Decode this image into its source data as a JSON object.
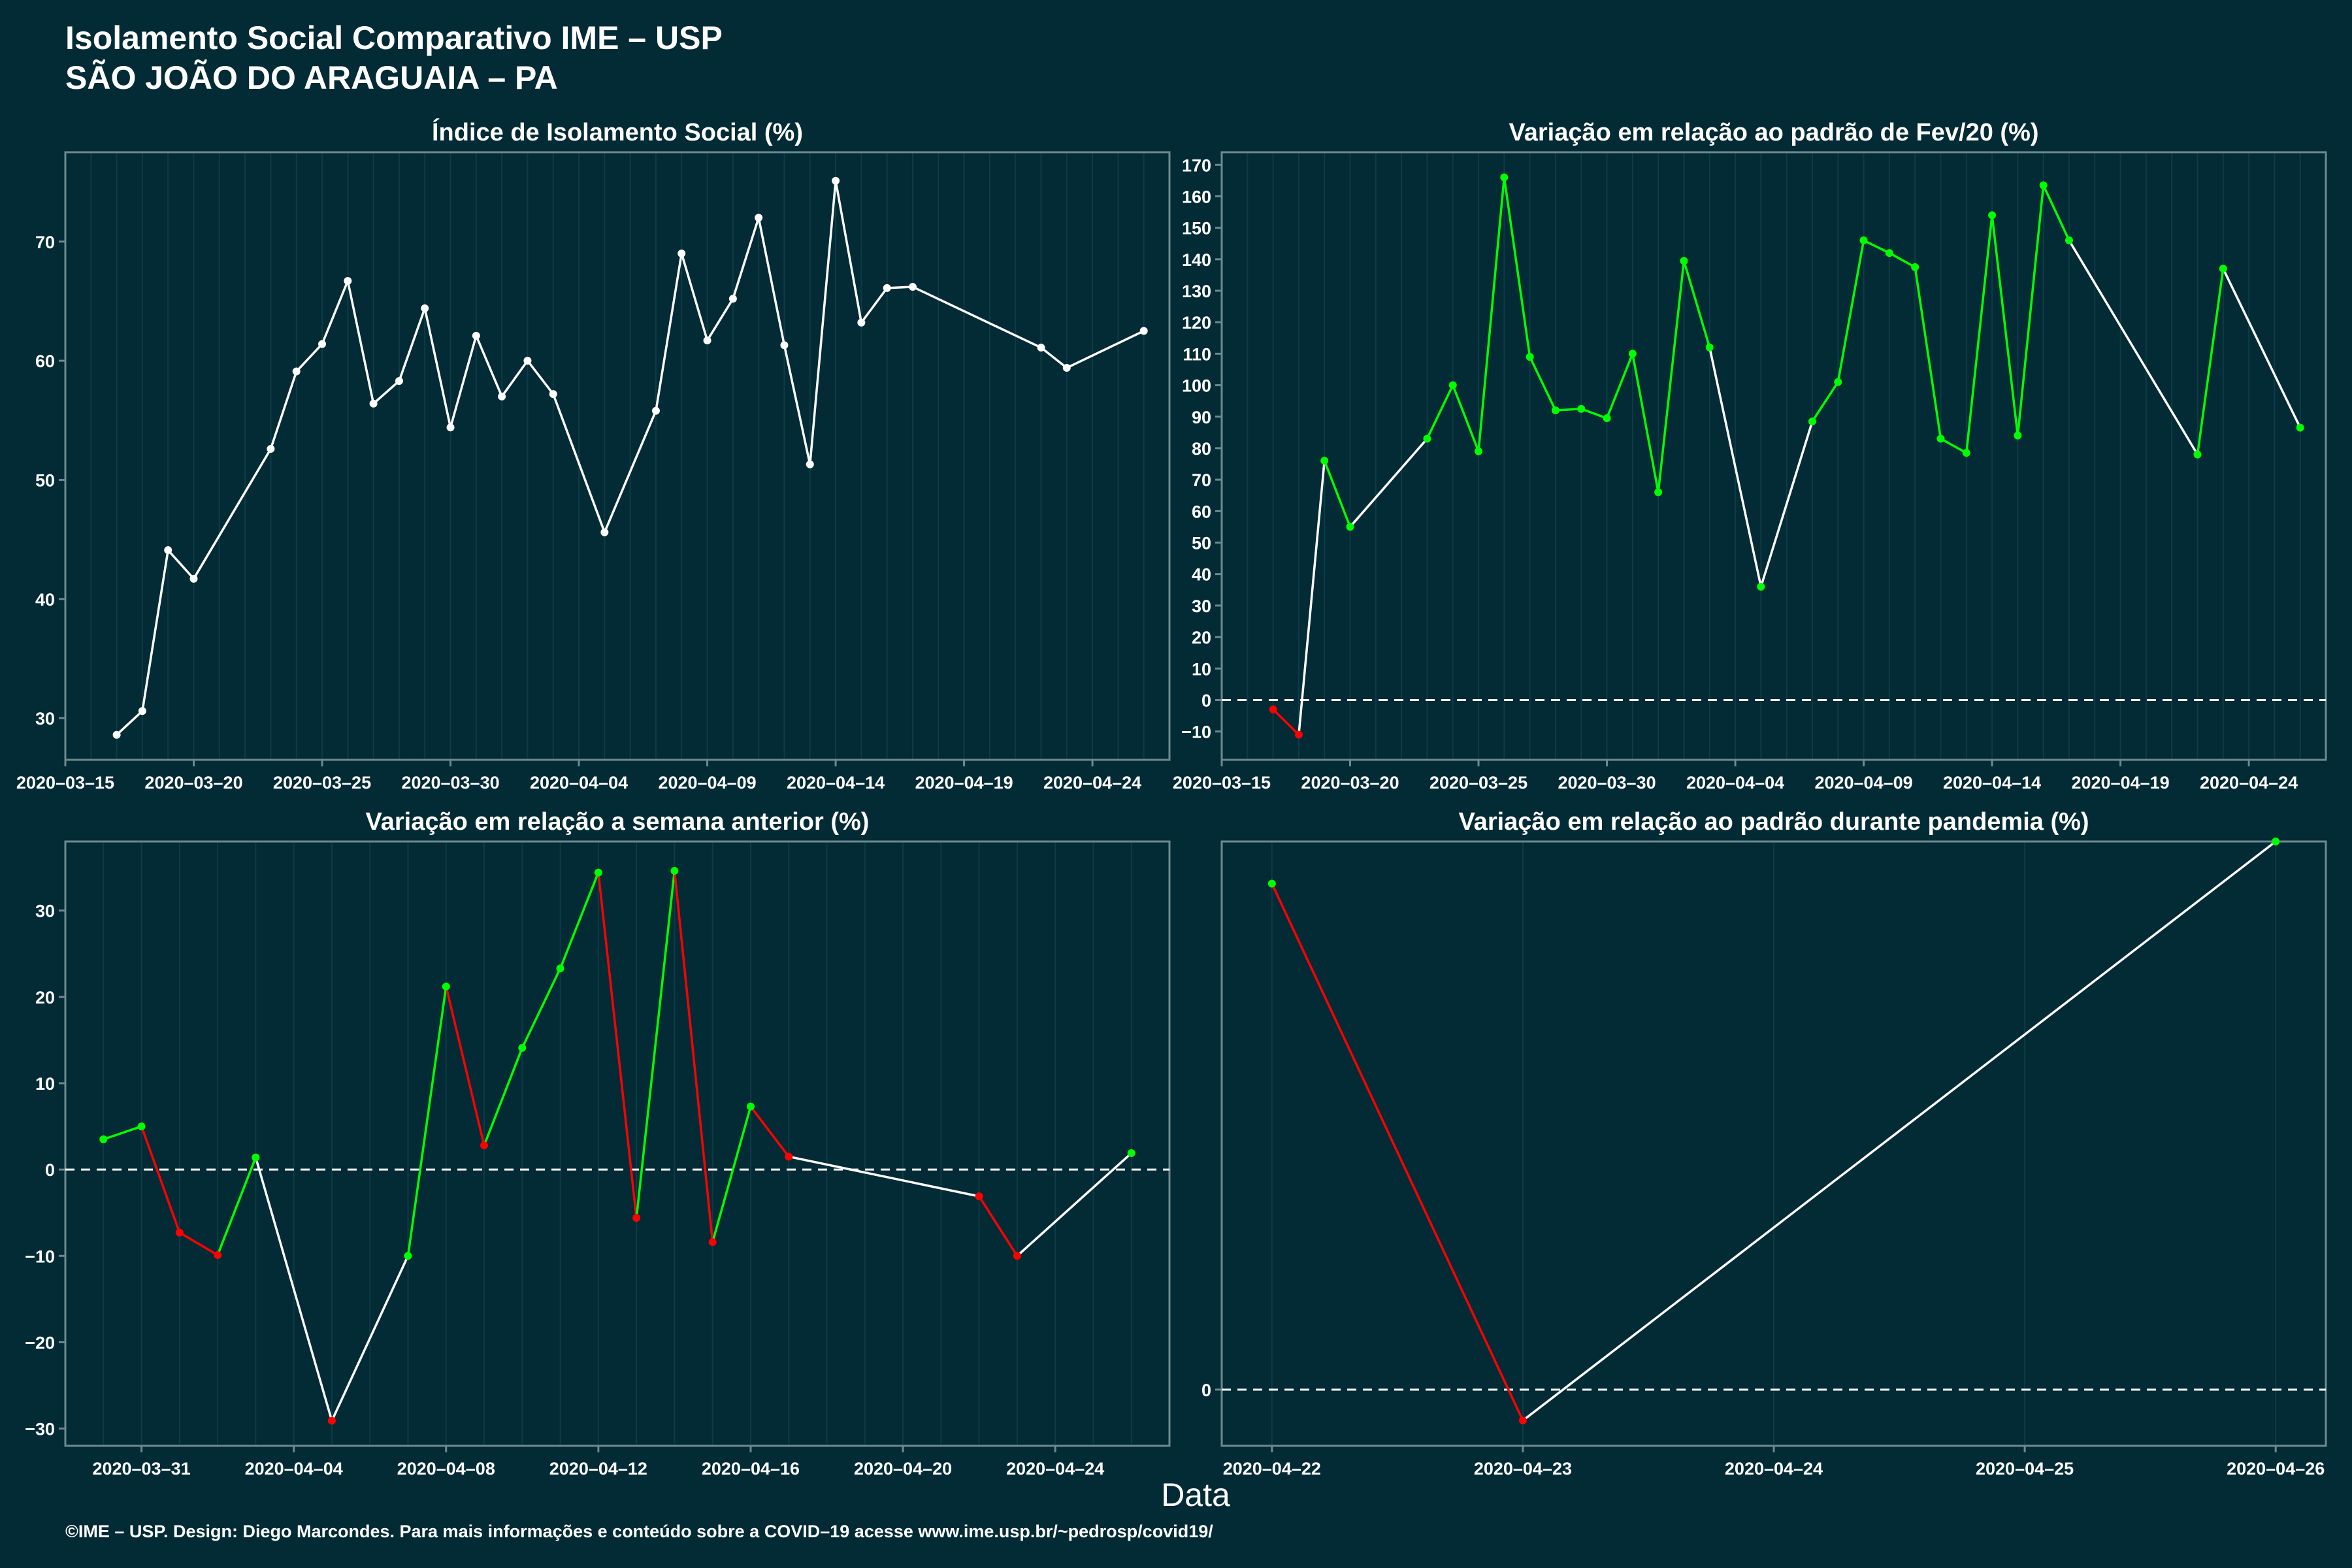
{
  "header": {
    "title": "Isolamento Social Comparativo IME – USP",
    "subtitle": "SÃO JOÃO DO ARAGUAIA – PA"
  },
  "x_axis_label": "Data",
  "footer": "©IME – USP. Design: Diego Marcondes. Para mais informações e conteúdo sobre a COVID–19 acesse www.ime.usp.br/~pedrosp/covid19/",
  "colors": {
    "background": "#022b35",
    "text": "#ffffff",
    "axis": "#6e8a8f",
    "grid": "#0e3b45",
    "neutral_line": "#ffffff",
    "increase": "#00ff00",
    "decrease": "#ff0000"
  },
  "chart_data": [
    {
      "type": "line",
      "title": "Índice de Isolamento Social (%)",
      "x_type": "date",
      "xlim": [
        "2020-03-15",
        "2020-04-27"
      ],
      "ylim": [
        26.5,
        77.5
      ],
      "x_ticks": [
        "2020-03-15",
        "2020-03-20",
        "2020-03-25",
        "2020-03-30",
        "2020-04-04",
        "2020-04-09",
        "2020-04-14",
        "2020-04-19",
        "2020-04-24"
      ],
      "y_ticks": [
        30,
        40,
        50,
        60,
        70
      ],
      "zero_line": false,
      "coloring": "none",
      "grid": true,
      "points": [
        {
          "x": "2020-03-17",
          "y": 28.6
        },
        {
          "x": "2020-03-18",
          "y": 30.6
        },
        {
          "x": "2020-03-19",
          "y": 44.1
        },
        {
          "x": "2020-03-20",
          "y": 41.7
        },
        {
          "x": "2020-03-23",
          "y": 52.6
        },
        {
          "x": "2020-03-24",
          "y": 59.1
        },
        {
          "x": "2020-03-25",
          "y": 61.4
        },
        {
          "x": "2020-03-26",
          "y": 66.7
        },
        {
          "x": "2020-03-27",
          "y": 56.4
        },
        {
          "x": "2020-03-28",
          "y": 58.3
        },
        {
          "x": "2020-03-29",
          "y": 64.4
        },
        {
          "x": "2020-03-30",
          "y": 54.4
        },
        {
          "x": "2020-03-31",
          "y": 62.1
        },
        {
          "x": "2020-04-01",
          "y": 57.0
        },
        {
          "x": "2020-04-02",
          "y": 60.0
        },
        {
          "x": "2020-04-03",
          "y": 57.2
        },
        {
          "x": "2020-04-05",
          "y": 45.6
        },
        {
          "x": "2020-04-07",
          "y": 55.8
        },
        {
          "x": "2020-04-08",
          "y": 69.0
        },
        {
          "x": "2020-04-09",
          "y": 61.7
        },
        {
          "x": "2020-04-10",
          "y": 65.2
        },
        {
          "x": "2020-04-11",
          "y": 72.0
        },
        {
          "x": "2020-04-12",
          "y": 61.3
        },
        {
          "x": "2020-04-13",
          "y": 51.3
        },
        {
          "x": "2020-04-14",
          "y": 75.1
        },
        {
          "x": "2020-04-15",
          "y": 63.2
        },
        {
          "x": "2020-04-16",
          "y": 66.1
        },
        {
          "x": "2020-04-17",
          "y": 66.2
        },
        {
          "x": "2020-04-22",
          "y": 61.1
        },
        {
          "x": "2020-04-23",
          "y": 59.4
        },
        {
          "x": "2020-04-26",
          "y": 62.5
        }
      ]
    },
    {
      "type": "line",
      "title": "Variação em relação ao padrão de Fev/20 (%)",
      "x_type": "date",
      "xlim": [
        "2020-03-15",
        "2020-04-27"
      ],
      "ylim": [
        -19,
        174
      ],
      "x_ticks": [
        "2020-03-15",
        "2020-03-20",
        "2020-03-25",
        "2020-03-30",
        "2020-04-04",
        "2020-04-09",
        "2020-04-14",
        "2020-04-19",
        "2020-04-24"
      ],
      "y_ticks": [
        -10,
        0,
        10,
        20,
        30,
        40,
        50,
        60,
        70,
        80,
        90,
        100,
        110,
        120,
        130,
        140,
        150,
        160,
        170
      ],
      "zero_line": true,
      "coloring": "sign",
      "grid": true,
      "points": [
        {
          "x": "2020-03-17",
          "y": -3
        },
        {
          "x": "2020-03-18",
          "y": -11
        },
        {
          "x": "2020-03-19",
          "y": 76
        },
        {
          "x": "2020-03-20",
          "y": 55
        },
        {
          "x": "2020-03-23",
          "y": 83
        },
        {
          "x": "2020-03-24",
          "y": 100
        },
        {
          "x": "2020-03-25",
          "y": 79
        },
        {
          "x": "2020-03-26",
          "y": 166
        },
        {
          "x": "2020-03-27",
          "y": 109
        },
        {
          "x": "2020-03-28",
          "y": 92
        },
        {
          "x": "2020-03-29",
          "y": 92.5
        },
        {
          "x": "2020-03-30",
          "y": 89.5
        },
        {
          "x": "2020-03-31",
          "y": 110
        },
        {
          "x": "2020-04-01",
          "y": 66
        },
        {
          "x": "2020-04-02",
          "y": 139.5
        },
        {
          "x": "2020-04-03",
          "y": 112
        },
        {
          "x": "2020-04-05",
          "y": 36
        },
        {
          "x": "2020-04-07",
          "y": 88.5
        },
        {
          "x": "2020-04-08",
          "y": 101
        },
        {
          "x": "2020-04-09",
          "y": 146
        },
        {
          "x": "2020-04-10",
          "y": 142
        },
        {
          "x": "2020-04-11",
          "y": 137.5
        },
        {
          "x": "2020-04-12",
          "y": 83
        },
        {
          "x": "2020-04-13",
          "y": 78.5
        },
        {
          "x": "2020-04-14",
          "y": 154
        },
        {
          "x": "2020-04-15",
          "y": 84
        },
        {
          "x": "2020-04-16",
          "y": 163.5
        },
        {
          "x": "2020-04-17",
          "y": 146
        },
        {
          "x": "2020-04-22",
          "y": 78
        },
        {
          "x": "2020-04-23",
          "y": 137
        },
        {
          "x": "2020-04-26",
          "y": 86.5
        }
      ]
    },
    {
      "type": "line",
      "title": "Variação em relação a semana anterior (%)",
      "x_type": "date",
      "xlim": [
        "2020-03-29",
        "2020-04-27"
      ],
      "ylim": [
        -32,
        38
      ],
      "x_ticks": [
        "2020-03-31",
        "2020-04-04",
        "2020-04-08",
        "2020-04-12",
        "2020-04-16",
        "2020-04-20",
        "2020-04-24"
      ],
      "y_ticks": [
        -30,
        -20,
        -10,
        0,
        10,
        20,
        30
      ],
      "zero_line": true,
      "coloring": "trend",
      "grid": true,
      "points": [
        {
          "x": "2020-03-30",
          "y": 3.5
        },
        {
          "x": "2020-03-31",
          "y": 5.0
        },
        {
          "x": "2020-04-01",
          "y": -7.3
        },
        {
          "x": "2020-04-02",
          "y": -9.9
        },
        {
          "x": "2020-04-03",
          "y": 1.4
        },
        {
          "x": "2020-04-05",
          "y": -29.1
        },
        {
          "x": "2020-04-07",
          "y": -10.0
        },
        {
          "x": "2020-04-08",
          "y": 21.2
        },
        {
          "x": "2020-04-09",
          "y": 2.8
        },
        {
          "x": "2020-04-10",
          "y": 14.1
        },
        {
          "x": "2020-04-11",
          "y": 23.3
        },
        {
          "x": "2020-04-12",
          "y": 34.4
        },
        {
          "x": "2020-04-13",
          "y": -5.6
        },
        {
          "x": "2020-04-14",
          "y": 34.6
        },
        {
          "x": "2020-04-15",
          "y": -8.4
        },
        {
          "x": "2020-04-16",
          "y": 7.3
        },
        {
          "x": "2020-04-17",
          "y": 1.5
        },
        {
          "x": "2020-04-22",
          "y": -3.1
        },
        {
          "x": "2020-04-23",
          "y": -10.0
        },
        {
          "x": "2020-04-26",
          "y": 1.9
        }
      ]
    },
    {
      "type": "line",
      "title": "Variação em relação ao padrão durante pandemia (%)",
      "x_type": "date",
      "xlim": [
        "2020-04-21.8",
        "2020-04-26.2"
      ],
      "ylim": [
        -2,
        19.5
      ],
      "x_ticks": [
        "2020-04-22",
        "2020-04-23",
        "2020-04-24",
        "2020-04-25",
        "2020-04-26"
      ],
      "y_ticks": [
        0
      ],
      "zero_line": true,
      "coloring": "trend",
      "grid": true,
      "points": [
        {
          "x": "2020-04-22",
          "y": 18.0
        },
        {
          "x": "2020-04-23",
          "y": -1.1
        },
        {
          "x": "2020-04-26",
          "y": 19.5
        }
      ]
    }
  ]
}
